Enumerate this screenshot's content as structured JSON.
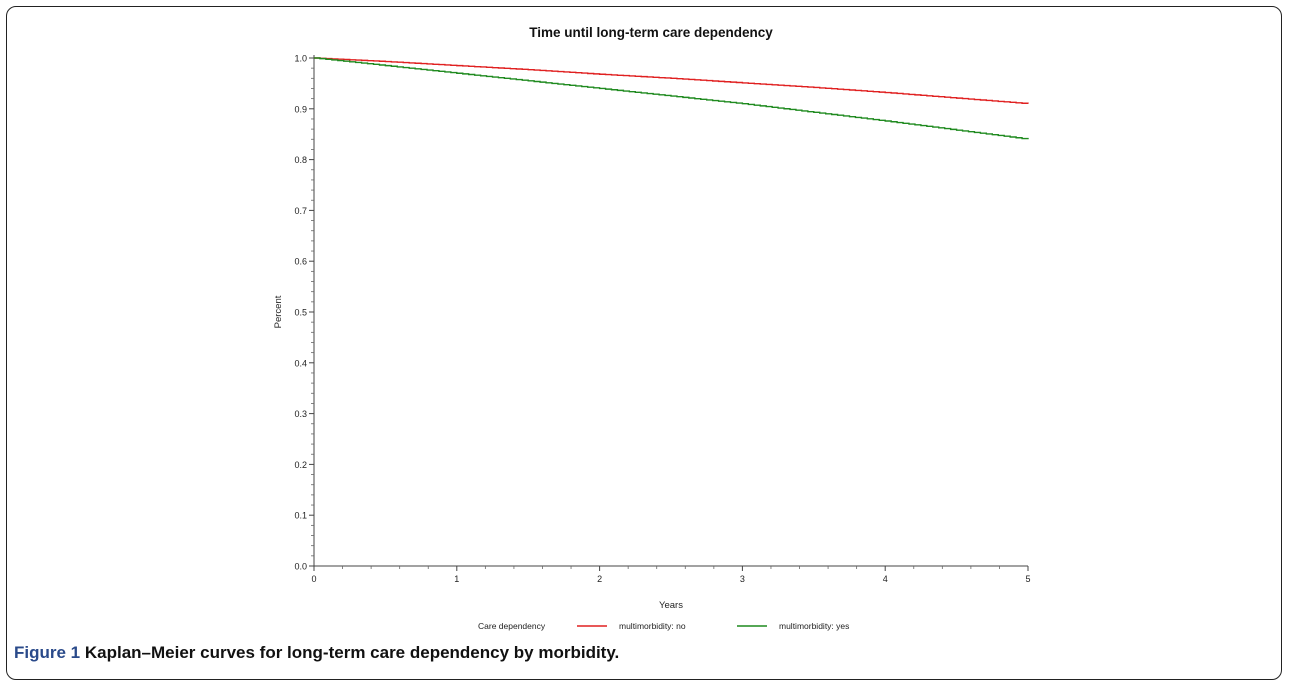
{
  "chart_data": {
    "type": "line",
    "title": "Time until long-term care dependency",
    "xlabel": "Years",
    "ylabel": "Percent",
    "xlim": [
      0,
      5
    ],
    "ylim": [
      0.0,
      1.0
    ],
    "x_ticks": [
      "0",
      "1",
      "2",
      "3",
      "4",
      "5"
    ],
    "y_ticks": [
      "0.0",
      "0.1",
      "0.2",
      "0.3",
      "0.4",
      "0.5",
      "0.6",
      "0.7",
      "0.8",
      "0.9",
      "1.0"
    ],
    "grid": false,
    "legend_title": "Care dependency",
    "legend_position": "bottom",
    "series": [
      {
        "name": "multimorbidity: no",
        "color": "#e02020",
        "x": [
          0,
          0.5,
          1,
          1.5,
          2,
          2.5,
          3,
          3.5,
          4,
          4.5,
          5
        ],
        "y": [
          1.0,
          0.993,
          0.985,
          0.977,
          0.968,
          0.96,
          0.951,
          0.942,
          0.932,
          0.921,
          0.91
        ]
      },
      {
        "name": "multimorbidity: yes",
        "color": "#1f8a1f",
        "x": [
          0,
          0.5,
          1,
          1.5,
          2,
          2.5,
          3,
          3.5,
          4,
          4.5,
          5
        ],
        "y": [
          1.0,
          0.985,
          0.97,
          0.955,
          0.94,
          0.925,
          0.91,
          0.893,
          0.876,
          0.858,
          0.84
        ]
      }
    ]
  },
  "caption": {
    "label": "Figure 1",
    "text": "Kaplan–Meier curves for long-term care dependency by morbidity."
  }
}
